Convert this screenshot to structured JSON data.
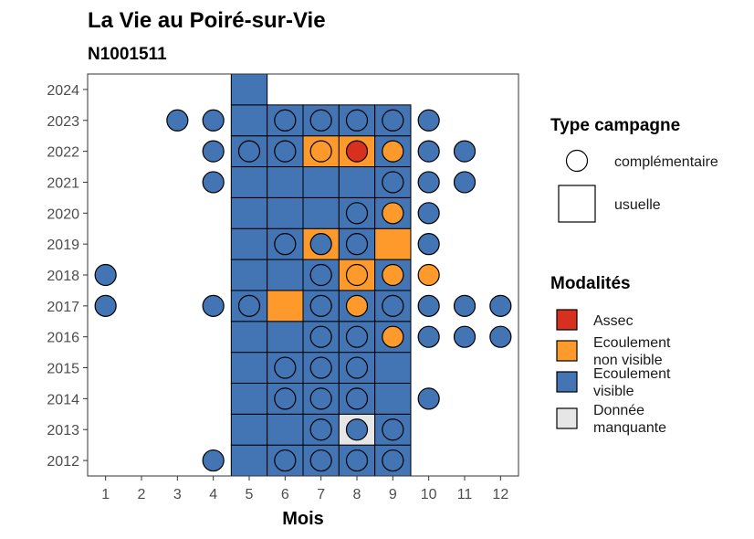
{
  "chart_data": {
    "type": "heatmap",
    "title": "La Vie  au Poiré-sur-Vie",
    "subtitle": "N1001511",
    "xlabel": "Mois",
    "ylabel": "",
    "x_ticks": [
      "1",
      "2",
      "3",
      "4",
      "5",
      "6",
      "7",
      "8",
      "9",
      "10",
      "11",
      "12"
    ],
    "y_ticks": [
      "2012",
      "2013",
      "2014",
      "2015",
      "2016",
      "2017",
      "2018",
      "2019",
      "2020",
      "2021",
      "2022",
      "2023",
      "2024"
    ],
    "xlim": [
      0.5,
      12.5
    ],
    "ylim": [
      2011.5,
      2024.5
    ],
    "grid": false,
    "legend_position": "right",
    "legend_shape": {
      "title": "Type campagne",
      "items": [
        {
          "key": "complementaire",
          "label": "complémentaire",
          "shape": "circle"
        },
        {
          "key": "usuelle",
          "label": "usuelle",
          "shape": "square"
        }
      ]
    },
    "legend_color": {
      "title": "Modalités",
      "items": [
        {
          "key": "assec",
          "label_lines": [
            "Assec"
          ],
          "color": "#d7301f"
        },
        {
          "key": "non_visible",
          "label_lines": [
            "Ecoulement",
            "non visible"
          ],
          "color": "#fd9a2b"
        },
        {
          "key": "visible",
          "label_lines": [
            "Ecoulement",
            "visible"
          ],
          "color": "#4374b3"
        },
        {
          "key": "manquante",
          "label_lines": [
            "Donnée",
            "manquante"
          ],
          "color": "#e6e6e6"
        }
      ]
    },
    "usuelle": [
      {
        "year": 2012,
        "values": {
          "5": "visible",
          "6": "visible",
          "7": "visible",
          "8": "visible",
          "9": "visible"
        }
      },
      {
        "year": 2013,
        "values": {
          "5": "visible",
          "6": "visible",
          "7": "visible",
          "8": "manquante",
          "9": "visible"
        }
      },
      {
        "year": 2014,
        "values": {
          "5": "visible",
          "6": "visible",
          "7": "visible",
          "8": "visible",
          "9": "visible"
        }
      },
      {
        "year": 2015,
        "values": {
          "5": "visible",
          "6": "visible",
          "7": "visible",
          "8": "visible",
          "9": "visible"
        }
      },
      {
        "year": 2016,
        "values": {
          "5": "visible",
          "6": "visible",
          "7": "visible",
          "8": "visible",
          "9": "visible"
        }
      },
      {
        "year": 2017,
        "values": {
          "5": "visible",
          "6": "non_visible",
          "7": "visible",
          "8": "visible",
          "9": "visible"
        }
      },
      {
        "year": 2018,
        "values": {
          "5": "visible",
          "6": "visible",
          "7": "visible",
          "8": "non_visible",
          "9": "visible"
        }
      },
      {
        "year": 2019,
        "values": {
          "5": "visible",
          "6": "visible",
          "7": "non_visible",
          "8": "visible",
          "9": "non_visible"
        }
      },
      {
        "year": 2020,
        "values": {
          "5": "visible",
          "6": "visible",
          "7": "visible",
          "8": "visible",
          "9": "visible"
        }
      },
      {
        "year": 2021,
        "values": {
          "5": "visible",
          "6": "visible",
          "7": "visible",
          "8": "visible",
          "9": "visible"
        }
      },
      {
        "year": 2022,
        "values": {
          "5": "visible",
          "6": "visible",
          "7": "non_visible",
          "8": "non_visible",
          "9": "visible"
        }
      },
      {
        "year": 2023,
        "values": {
          "5": "visible",
          "6": "visible",
          "7": "visible",
          "8": "visible",
          "9": "visible"
        }
      },
      {
        "year": 2024,
        "values": {
          "5": "visible"
        }
      }
    ],
    "complementaire": [
      {
        "year": 2012,
        "values": {
          "4": "visible",
          "6": "visible",
          "7": "visible",
          "8": "visible",
          "9": "visible"
        }
      },
      {
        "year": 2013,
        "values": {
          "7": "visible",
          "8": "visible",
          "9": "visible"
        }
      },
      {
        "year": 2014,
        "values": {
          "6": "visible",
          "7": "visible",
          "8": "visible",
          "10": "visible"
        }
      },
      {
        "year": 2015,
        "values": {
          "6": "visible",
          "7": "visible",
          "8": "visible"
        }
      },
      {
        "year": 2016,
        "values": {
          "7": "visible",
          "8": "visible",
          "9": "non_visible",
          "10": "visible",
          "11": "visible",
          "12": "visible"
        }
      },
      {
        "year": 2017,
        "values": {
          "1": "visible",
          "4": "visible",
          "5": "visible",
          "7": "visible",
          "8": "non_visible",
          "9": "visible",
          "10": "visible",
          "11": "visible",
          "12": "visible"
        }
      },
      {
        "year": 2018,
        "values": {
          "1": "visible",
          "7": "visible",
          "8": "non_visible",
          "9": "non_visible",
          "10": "non_visible"
        }
      },
      {
        "year": 2019,
        "values": {
          "6": "visible",
          "7": "visible",
          "8": "visible",
          "10": "visible"
        }
      },
      {
        "year": 2020,
        "values": {
          "8": "visible",
          "9": "non_visible",
          "10": "visible"
        }
      },
      {
        "year": 2021,
        "values": {
          "4": "visible",
          "9": "visible",
          "10": "visible",
          "11": "visible"
        }
      },
      {
        "year": 2022,
        "values": {
          "4": "visible",
          "5": "visible",
          "6": "visible",
          "7": "non_visible",
          "8": "assec",
          "9": "non_visible",
          "10": "visible",
          "11": "visible"
        }
      },
      {
        "year": 2023,
        "values": {
          "3": "visible",
          "4": "visible",
          "6": "visible",
          "7": "visible",
          "8": "visible",
          "9": "visible",
          "10": "visible"
        }
      }
    ]
  }
}
